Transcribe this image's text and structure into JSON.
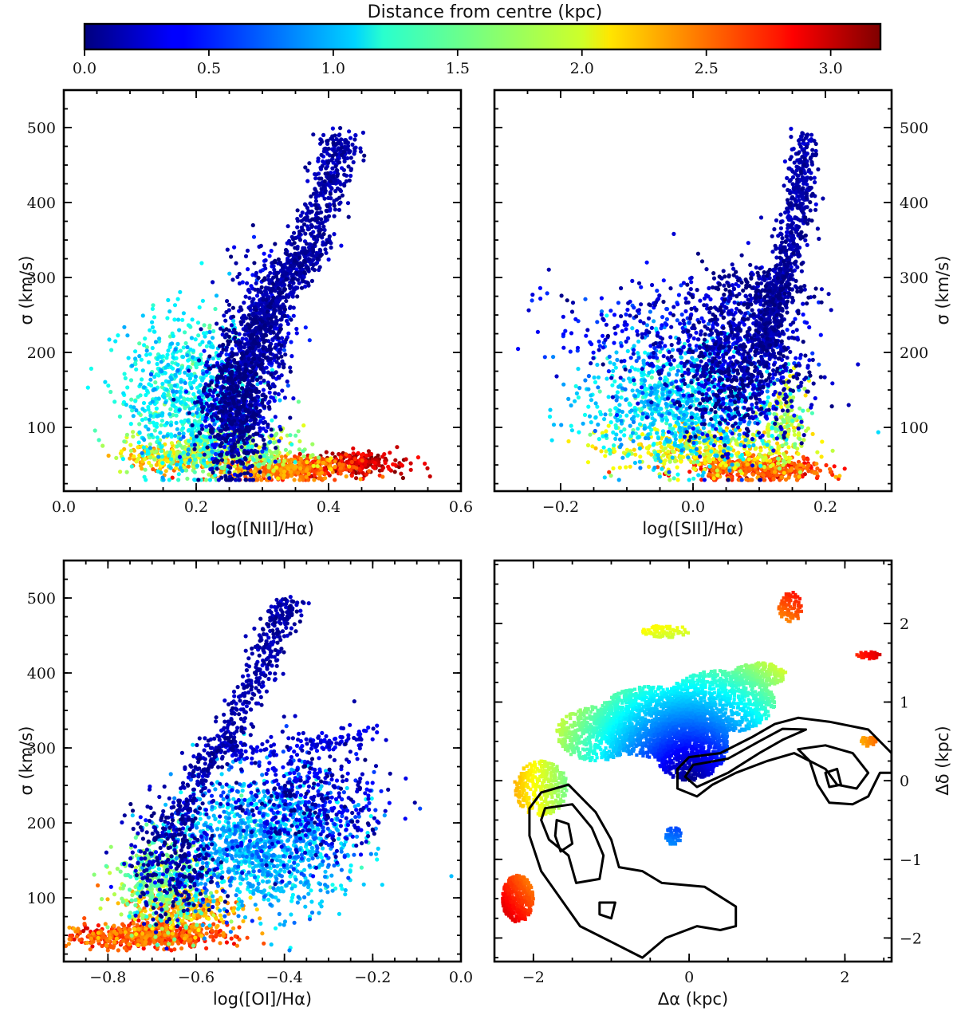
{
  "colorbar": {
    "label": "Distance from centre (kpc)",
    "range": [
      0.0,
      3.2
    ],
    "ticks": [
      0.0,
      0.5,
      1.0,
      1.5,
      2.0,
      2.5,
      3.0
    ],
    "tick_labels": [
      "0.0",
      "0.5",
      "1.0",
      "1.5",
      "2.0",
      "2.5",
      "3.0"
    ],
    "colormap": "jet"
  },
  "chart_data": [
    {
      "type": "scatter",
      "panel": "top-left",
      "xlabel": "log([NII]/Hα)",
      "ylabel": "σ (km/s)",
      "xlim": [
        0.0,
        0.6
      ],
      "ylim": [
        15,
        550
      ],
      "xticks": [
        0.0,
        0.2,
        0.4,
        0.6
      ],
      "xtick_labels": [
        "0.0",
        "0.2",
        "0.4",
        "0.6"
      ],
      "yticks": [
        100,
        200,
        300,
        400,
        500
      ],
      "ytick_labels": [
        "100",
        "200",
        "300",
        "400",
        "500"
      ],
      "color_by": "Distance from centre (kpc)",
      "clusters": [
        {
          "x": 0.26,
          "y": 130,
          "sx": 0.025,
          "sy": 45,
          "c": 0.15,
          "n": 900
        },
        {
          "x": 0.3,
          "y": 230,
          "sx": 0.025,
          "sy": 50,
          "c": 0.2,
          "n": 350
        },
        {
          "x": 0.19,
          "y": 140,
          "sx": 0.05,
          "sy": 50,
          "c": 1.2,
          "n": 800
        },
        {
          "x": 0.24,
          "y": 70,
          "sx": 0.06,
          "sy": 15,
          "c": 1.7,
          "n": 400
        },
        {
          "x": 0.33,
          "y": 45,
          "sx": 0.05,
          "sy": 8,
          "c": 2.5,
          "n": 450
        },
        {
          "x": 0.44,
          "y": 52,
          "sx": 0.04,
          "sy": 8,
          "c": 3.0,
          "n": 250
        },
        {
          "x": 0.16,
          "y": 60,
          "sx": 0.04,
          "sy": 8,
          "c": 2.2,
          "n": 200
        }
      ],
      "tracks": [
        {
          "points": [
            [
              0.285,
              180
            ],
            [
              0.3,
              250
            ],
            [
              0.34,
              300
            ],
            [
              0.37,
              340
            ],
            [
              0.4,
              420
            ],
            [
              0.42,
              490
            ]
          ],
          "width": 0.017,
          "c": 0.15,
          "n": 900
        }
      ]
    },
    {
      "type": "scatter",
      "panel": "top-right",
      "xlabel": "log([SII]/Hα)",
      "ylabel": "σ (km/s)",
      "xlim": [
        -0.3,
        0.3
      ],
      "ylim": [
        15,
        550
      ],
      "xticks": [
        -0.2,
        0.0,
        0.2
      ],
      "xtick_labels": [
        "−0.2",
        "0.0",
        "0.2"
      ],
      "yticks": [
        100,
        200,
        300,
        400,
        500
      ],
      "ytick_labels": [
        "100",
        "200",
        "300",
        "400",
        "500"
      ],
      "color_by": "Distance from centre (kpc)",
      "clusters": [
        {
          "x": 0.07,
          "y": 180,
          "sx": 0.05,
          "sy": 50,
          "c": 0.2,
          "n": 900
        },
        {
          "x": 0.1,
          "y": 280,
          "sx": 0.04,
          "sy": 20,
          "c": 0.1,
          "n": 200
        },
        {
          "x": -0.02,
          "y": 130,
          "sx": 0.07,
          "sy": 40,
          "c": 1.1,
          "n": 900
        },
        {
          "x": 0.02,
          "y": 70,
          "sx": 0.07,
          "sy": 15,
          "c": 2.0,
          "n": 400
        },
        {
          "x": 0.1,
          "y": 45,
          "sx": 0.05,
          "sy": 8,
          "c": 2.6,
          "n": 450
        },
        {
          "x": 0.14,
          "y": 110,
          "sx": 0.015,
          "sy": 25,
          "c": 1.8,
          "n": 150
        },
        {
          "x": -0.05,
          "y": 230,
          "sx": 0.08,
          "sy": 35,
          "c": 0.35,
          "n": 300
        }
      ],
      "tracks": [
        {
          "points": [
            [
              0.11,
              200
            ],
            [
              0.12,
              260
            ],
            [
              0.14,
              320
            ],
            [
              0.16,
              400
            ],
            [
              0.17,
              490
            ]
          ],
          "width": 0.012,
          "c": 0.15,
          "n": 700
        }
      ]
    },
    {
      "type": "scatter",
      "panel": "bottom-left",
      "xlabel": "log([OI]/Hα)",
      "ylabel": "σ (km/s)",
      "xlim": [
        -0.9,
        0.0
      ],
      "ylim": [
        15,
        550
      ],
      "xticks": [
        -0.8,
        -0.6,
        -0.4,
        -0.2,
        0.0
      ],
      "xtick_labels": [
        "−0.8",
        "−0.6",
        "−0.4",
        "−0.2",
        "0.0"
      ],
      "yticks": [
        100,
        200,
        300,
        400,
        500
      ],
      "ytick_labels": [
        "100",
        "200",
        "300",
        "400",
        "500"
      ],
      "color_by": "Distance from centre (kpc)",
      "clusters": [
        {
          "x": -0.45,
          "y": 170,
          "sx": 0.1,
          "sy": 45,
          "c": 1.0,
          "n": 1200
        },
        {
          "x": -0.35,
          "y": 230,
          "sx": 0.09,
          "sy": 40,
          "c": 0.3,
          "n": 500
        },
        {
          "x": -0.65,
          "y": 150,
          "sx": 0.05,
          "sy": 40,
          "c": 0.15,
          "n": 350
        },
        {
          "x": -0.68,
          "y": 120,
          "sx": 0.05,
          "sy": 30,
          "c": 1.6,
          "n": 400
        },
        {
          "x": -0.72,
          "y": 50,
          "sx": 0.09,
          "sy": 8,
          "c": 2.6,
          "n": 600
        },
        {
          "x": -0.62,
          "y": 85,
          "sx": 0.06,
          "sy": 15,
          "c": 2.3,
          "n": 250
        }
      ],
      "tracks": [
        {
          "points": [
            [
              -0.65,
              180
            ],
            [
              -0.6,
              260
            ],
            [
              -0.52,
              330
            ],
            [
              -0.46,
              400
            ],
            [
              -0.41,
              470
            ],
            [
              -0.39,
              495
            ]
          ],
          "width": 0.02,
          "c": 0.15,
          "n": 500
        },
        {
          "points": [
            [
              -0.55,
              300
            ],
            [
              -0.45,
              295
            ],
            [
              -0.3,
              310
            ],
            [
              -0.2,
              320
            ]
          ],
          "width": 0.01,
          "c": 0.3,
          "n": 120
        }
      ]
    },
    {
      "type": "heatmap",
      "panel": "bottom-right",
      "xlabel": "Δα (kpc)",
      "ylabel": "Δδ (kpc)",
      "xlim": [
        -2.5,
        2.6
      ],
      "ylim": [
        -2.3,
        2.8
      ],
      "xticks": [
        -2,
        0,
        2
      ],
      "xtick_labels": [
        "−2",
        "0",
        "2"
      ],
      "yticks": [
        -2,
        -1,
        0,
        1,
        2
      ],
      "ytick_labels": [
        "−2",
        "−1",
        "0",
        "1",
        "2"
      ],
      "color_by": "Distance from centre (kpc)",
      "regions": [
        {
          "cx": 0.0,
          "cy": 0.5,
          "rx": 0.5,
          "ry": 0.5,
          "n": 1200
        },
        {
          "cx": -0.5,
          "cy": 0.75,
          "rx": 0.7,
          "ry": 0.45,
          "n": 1200
        },
        {
          "cx": 0.4,
          "cy": 1.0,
          "rx": 0.7,
          "ry": 0.4,
          "n": 900
        },
        {
          "cx": -1.2,
          "cy": 0.6,
          "rx": 0.5,
          "ry": 0.35,
          "n": 500
        },
        {
          "cx": -1.9,
          "cy": -0.1,
          "rx": 0.35,
          "ry": 0.35,
          "n": 350
        },
        {
          "cx": -2.2,
          "cy": -1.5,
          "rx": 0.2,
          "ry": 0.3,
          "n": 400
        },
        {
          "cx": 0.9,
          "cy": 1.35,
          "rx": 0.35,
          "ry": 0.15,
          "n": 250
        },
        {
          "cx": -0.2,
          "cy": -0.7,
          "rx": 0.1,
          "ry": 0.12,
          "n": 60
        },
        {
          "cx": -0.3,
          "cy": 1.9,
          "rx": 0.3,
          "ry": 0.08,
          "n": 80
        },
        {
          "cx": 1.3,
          "cy": 2.2,
          "rx": 0.15,
          "ry": 0.2,
          "n": 90
        },
        {
          "cx": 2.3,
          "cy": 1.6,
          "rx": 0.15,
          "ry": 0.05,
          "n": 50
        },
        {
          "cx": 2.3,
          "cy": 0.5,
          "rx": 0.1,
          "ry": 0.06,
          "n": 40
        }
      ],
      "contours": [
        [
          [
            0,
            0.3
          ],
          [
            0.4,
            0.35
          ],
          [
            0.8,
            0.55
          ],
          [
            1.1,
            0.72
          ],
          [
            1.4,
            0.8
          ],
          [
            1.8,
            0.75
          ],
          [
            2.3,
            0.65
          ],
          [
            2.6,
            0.35
          ],
          [
            2.6,
            0.1
          ],
          [
            2.45,
            0.1
          ],
          [
            2.3,
            -0.2
          ],
          [
            2.1,
            -0.3
          ],
          [
            1.8,
            -0.28
          ],
          [
            1.65,
            -0.05
          ],
          [
            1.55,
            0.25
          ],
          [
            1.35,
            0.35
          ],
          [
            1.0,
            0.25
          ],
          [
            0.6,
            0.1
          ],
          [
            0.3,
            -0.05
          ],
          [
            0.1,
            -0.2
          ],
          [
            -0.15,
            -0.1
          ],
          [
            -0.15,
            0.15
          ],
          [
            0,
            0.3
          ]
        ],
        [
          [
            0.05,
            0.2
          ],
          [
            0.5,
            0.28
          ],
          [
            0.9,
            0.5
          ],
          [
            1.2,
            0.66
          ],
          [
            1.5,
            0.65
          ],
          [
            1.2,
            0.52
          ],
          [
            0.9,
            0.35
          ],
          [
            0.5,
            0.1
          ],
          [
            0.1,
            -0.08
          ],
          [
            -0.05,
            0.05
          ],
          [
            0.05,
            0.2
          ]
        ],
        [
          [
            -1.9,
            -0.15
          ],
          [
            -1.55,
            -0.05
          ],
          [
            -1.2,
            -0.4
          ],
          [
            -1.0,
            -0.75
          ],
          [
            -0.9,
            -1.1
          ],
          [
            -0.6,
            -1.15
          ],
          [
            -0.35,
            -1.3
          ],
          [
            0.2,
            -1.35
          ],
          [
            0.6,
            -1.6
          ],
          [
            0.6,
            -1.85
          ],
          [
            0.4,
            -1.9
          ],
          [
            0.1,
            -1.85
          ],
          [
            -0.3,
            -2.0
          ],
          [
            -0.6,
            -2.25
          ],
          [
            -1.0,
            -2.05
          ],
          [
            -1.4,
            -1.85
          ],
          [
            -1.65,
            -1.5
          ],
          [
            -1.9,
            -1.15
          ],
          [
            -2.05,
            -0.7
          ],
          [
            -2.05,
            -0.35
          ],
          [
            -1.9,
            -0.15
          ]
        ],
        [
          [
            -1.85,
            -0.35
          ],
          [
            -1.5,
            -0.3
          ],
          [
            -1.25,
            -0.6
          ],
          [
            -1.1,
            -0.95
          ],
          [
            -1.15,
            -1.25
          ],
          [
            -1.45,
            -1.3
          ],
          [
            -1.55,
            -0.95
          ],
          [
            -1.8,
            -0.75
          ],
          [
            -1.9,
            -0.5
          ],
          [
            -1.85,
            -0.35
          ]
        ],
        [
          [
            -1.7,
            -0.5
          ],
          [
            -1.55,
            -0.55
          ],
          [
            -1.5,
            -0.8
          ],
          [
            -1.65,
            -0.9
          ],
          [
            -1.72,
            -0.7
          ],
          [
            -1.7,
            -0.5
          ]
        ],
        [
          [
            -1.15,
            -1.55
          ],
          [
            -0.95,
            -1.55
          ],
          [
            -1.0,
            -1.75
          ],
          [
            -1.15,
            -1.7
          ],
          [
            -1.15,
            -1.55
          ]
        ],
        [
          [
            1.4,
            0.4
          ],
          [
            1.75,
            0.45
          ],
          [
            2.1,
            0.35
          ],
          [
            2.3,
            0.1
          ],
          [
            2.15,
            -0.1
          ],
          [
            1.9,
            -0.05
          ],
          [
            1.75,
            0.15
          ],
          [
            1.55,
            0.25
          ],
          [
            1.4,
            0.4
          ]
        ],
        [
          [
            1.75,
            0.1
          ],
          [
            1.9,
            0.15
          ],
          [
            1.95,
            -0.05
          ],
          [
            1.8,
            -0.08
          ],
          [
            1.75,
            0.1
          ]
        ]
      ]
    }
  ]
}
